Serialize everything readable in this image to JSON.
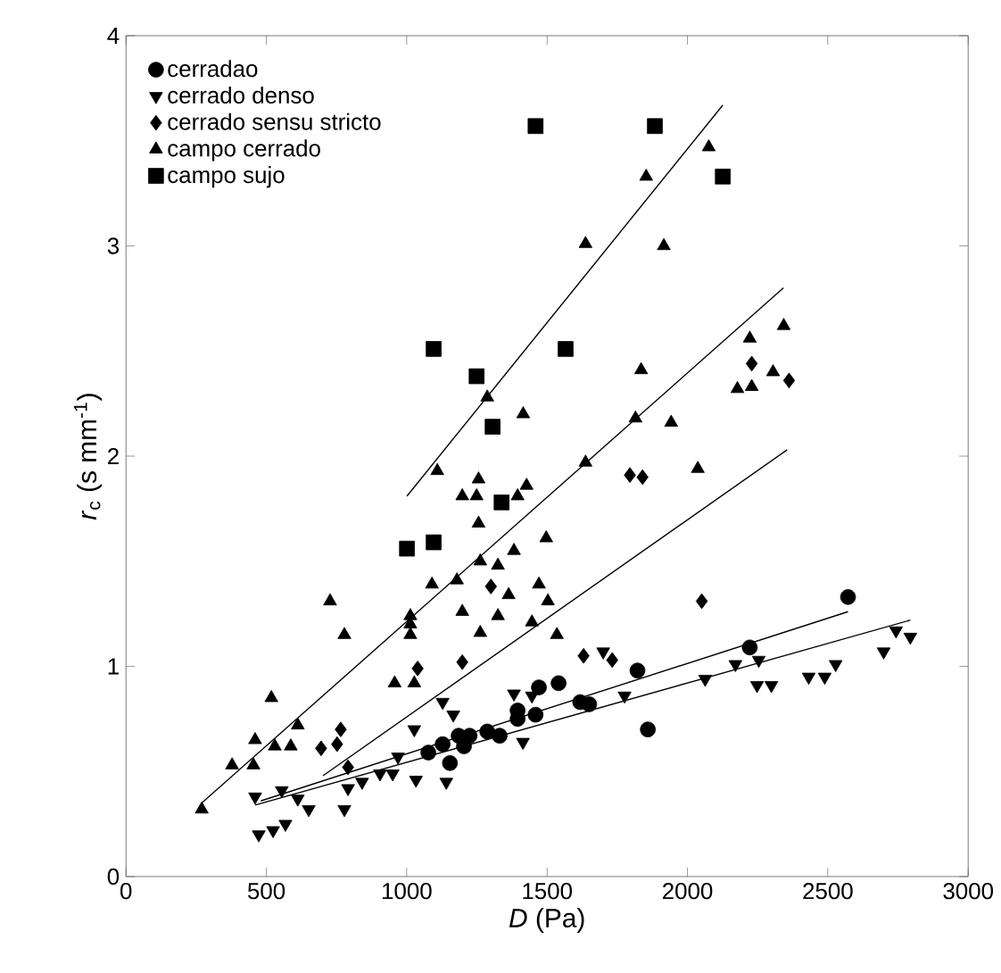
{
  "chart_data": {
    "type": "scatter",
    "xlabel": "*D* (Pa)",
    "ylabel": "*r*$_{c}$ (s mm$^{-1}$)",
    "xlim": [
      0,
      3000
    ],
    "ylim": [
      0,
      4
    ],
    "xticks": [
      0,
      500,
      1000,
      1500,
      2000,
      2500,
      3000
    ],
    "yticks": [
      0,
      1,
      2,
      3,
      4
    ],
    "grid": false,
    "legend": "top left",
    "series": [
      {
        "name": "cerradao",
        "color": "#000000",
        "marker": "circle",
        "x": [
          2572,
          2222,
          1822,
          1859,
          1618,
          1650,
          1541,
          1471,
          1395,
          1185,
          1077,
          1128,
          1224,
          1287,
          1331,
          1395,
          1459,
          1154,
          1204
        ],
        "values": [
          1.33,
          1.09,
          0.98,
          0.7,
          0.83,
          0.82,
          0.92,
          0.9,
          0.79,
          0.67,
          0.59,
          0.63,
          0.67,
          0.69,
          0.67,
          0.75,
          0.77,
          0.54,
          0.62
        ]
      },
      {
        "name": "cerrado denso",
        "color": "#000000",
        "marker": "triangle-down",
        "x": [
          2794,
          2743,
          2699,
          2528,
          2489,
          2432,
          2299,
          2248,
          2254,
          2171,
          2063,
          1776,
          1700,
          1414,
          1382,
          1446,
          1128,
          1166,
          1027,
          1141,
          969,
          905,
          950,
          841,
          791,
          778,
          651,
          612,
          555,
          460,
          473,
          524,
          568,
          1033
        ],
        "values": [
          1.14,
          1.17,
          1.07,
          1.01,
          0.95,
          0.95,
          0.91,
          0.91,
          1.03,
          1.01,
          0.94,
          0.86,
          1.07,
          0.64,
          0.87,
          0.86,
          0.83,
          0.77,
          0.7,
          0.45,
          0.57,
          0.49,
          0.49,
          0.45,
          0.42,
          0.32,
          0.32,
          0.37,
          0.41,
          0.38,
          0.2,
          0.22,
          0.25,
          0.46
        ]
      },
      {
        "name": "cerrado sensu stricto",
        "color": "#000000",
        "marker": "diamond",
        "x": [
          2229,
          2362,
          1795,
          1840,
          2051,
          1630,
          1732,
          1300,
          1198,
          1039,
          765,
          695,
          752,
          791
        ],
        "values": [
          2.44,
          2.36,
          1.91,
          1.9,
          1.31,
          1.05,
          1.03,
          1.38,
          1.02,
          0.99,
          0.7,
          0.61,
          0.63,
          0.52
        ]
      },
      {
        "name": "campo cerrado",
        "color": "#000000",
        "marker": "triangle",
        "x": [
          2076,
          1853,
          1637,
          1916,
          2222,
          2343,
          1835,
          2305,
          2178,
          2229,
          1287,
          1415,
          1815,
          1942,
          1109,
          1256,
          1198,
          1249,
          1427,
          1395,
          1256,
          1497,
          1382,
          1262,
          1325,
          1090,
          1179,
          1471,
          1503,
          1363,
          727,
          778,
          1013,
          1013,
          1013,
          1198,
          1325,
          1262,
          1446,
          957,
          1027,
          518,
          612,
          460,
          530,
          587,
          378,
          454,
          270,
          1637,
          2037,
          1535
        ],
        "values": [
          3.47,
          3.33,
          3.01,
          3.0,
          2.56,
          2.62,
          2.41,
          2.4,
          2.32,
          2.33,
          2.28,
          2.2,
          2.18,
          2.16,
          1.93,
          1.89,
          1.81,
          1.81,
          1.86,
          1.81,
          1.68,
          1.61,
          1.55,
          1.5,
          1.48,
          1.39,
          1.41,
          1.39,
          1.31,
          1.34,
          1.31,
          1.15,
          1.24,
          1.2,
          1.15,
          1.26,
          1.24,
          1.16,
          1.21,
          0.92,
          0.92,
          0.85,
          0.72,
          0.65,
          0.62,
          0.62,
          0.53,
          0.53,
          0.32,
          1.97,
          1.94,
          1.15
        ]
      },
      {
        "name": "campo sujo",
        "color": "#000000",
        "marker": "square",
        "x": [
          1459,
          1884,
          2126,
          1096,
          1566,
          1249,
          1306,
          1001,
          1096,
          1338
        ],
        "values": [
          3.57,
          3.57,
          3.33,
          2.51,
          2.51,
          2.38,
          2.14,
          1.56,
          1.59,
          1.78
        ]
      },
      {
        "type": "line",
        "color": "#000000",
        "x": [
          480,
          2572
        ],
        "values": [
          0.36,
          1.26
        ]
      },
      {
        "type": "line",
        "color": "#000000",
        "x": [
          460,
          2794
        ],
        "values": [
          0.34,
          1.22
        ]
      },
      {
        "type": "line",
        "color": "#000000",
        "x": [
          702,
          2355
        ],
        "values": [
          0.48,
          2.03
        ]
      },
      {
        "type": "line",
        "color": "#000000",
        "x": [
          270,
          2342
        ],
        "values": [
          0.35,
          2.8
        ]
      },
      {
        "type": "line",
        "color": "#000000",
        "x": [
          1001,
          2126
        ],
        "values": [
          1.81,
          3.67
        ]
      }
    ]
  }
}
